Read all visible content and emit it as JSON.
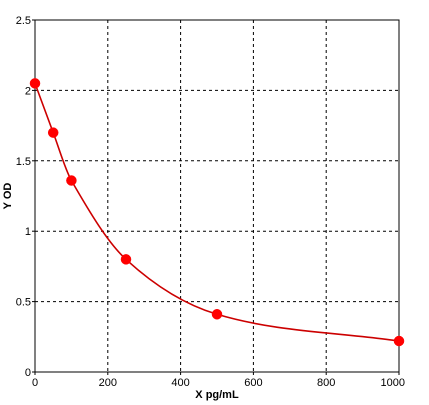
{
  "chart_data": {
    "type": "scatter",
    "xlabel": "X pg/mL",
    "ylabel": "Y OD",
    "xlim": [
      0,
      1000
    ],
    "ylim": [
      0,
      2.5
    ],
    "grid": true,
    "x_ticks": [
      0,
      200,
      400,
      600,
      800,
      1000
    ],
    "x_tick_labels": [
      "0",
      "200",
      "400",
      "600",
      "800",
      "1000"
    ],
    "y_ticks": [
      0,
      0.5,
      1,
      1.5,
      2,
      2.5
    ],
    "y_tick_labels": [
      "0",
      "0.5",
      "1",
      "1.5",
      "2",
      "2.5"
    ],
    "series": [
      {
        "x": [
          0,
          50,
          100,
          250,
          500,
          1000
        ],
        "y": [
          2.05,
          1.7,
          1.36,
          0.8,
          0.41,
          0.22
        ],
        "marker_color": "#ff0000",
        "curve_color": "#cc0000",
        "fit": "smooth-curve"
      }
    ]
  }
}
